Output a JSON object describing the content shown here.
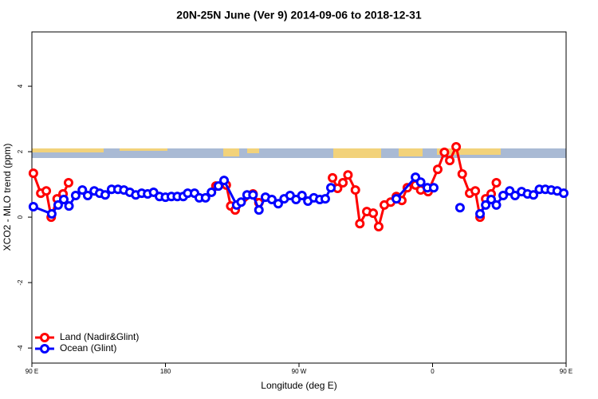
{
  "chart_data": {
    "type": "line",
    "title": "20N-25N June (Ver 9)   2014-09-06 to 2018-12-31",
    "xlabel": "Longitude (deg E)",
    "ylabel": "XCO2 - MLO trend (ppm)",
    "xlim": [
      90,
      450
    ],
    "ylim": [
      -4.46,
      5.66
    ],
    "xticks": [
      {
        "value": 90,
        "label": "90 E"
      },
      {
        "value": 180,
        "label": "180"
      },
      {
        "value": 270,
        "label": "90 W"
      },
      {
        "value": 360,
        "label": "0"
      },
      {
        "value": 450,
        "label": "90 E"
      }
    ],
    "yticks": [
      -4,
      -2,
      0,
      2,
      4
    ],
    "legend": "bottom-left",
    "series": [
      {
        "name": "Land (Nadir&Glint)",
        "color": "#ff0000",
        "x": [
          91,
          96,
          99.7,
          103,
          107,
          111,
          114.7,
          null,
          214,
          221,
          224,
          227,
          239,
          243,
          null,
          292.6,
          296,
          299.6,
          303,
          308,
          311,
          315.7,
          320,
          323.7,
          327.5,
          331.8,
          335.6,
          339.3,
          343,
          348.5,
          352,
          357,
          363.5,
          368,
          371.6,
          375.9,
          380,
          385,
          388.8,
          392,
          395.8,
          399.5,
          403
        ],
        "values": [
          1.34,
          0.73,
          0.8,
          0.0,
          0.56,
          0.71,
          1.05,
          null,
          0.95,
          0.98,
          0.34,
          0.22,
          0.71,
          0.44,
          null,
          1.2,
          0.88,
          1.05,
          1.29,
          0.83,
          -0.2,
          0.17,
          0.12,
          -0.29,
          0.37,
          0.46,
          0.63,
          0.51,
          0.9,
          0.98,
          0.83,
          0.78,
          1.46,
          1.98,
          1.73,
          2.15,
          1.32,
          0.73,
          0.8,
          0.0,
          0.56,
          0.71,
          1.05
        ]
      },
      {
        "name": "Ocean (Glint)",
        "color": "#0000ff",
        "x": [
          91,
          103.4,
          107.7,
          111.5,
          115,
          119.5,
          124,
          127.6,
          132,
          135.7,
          139.4,
          143.7,
          148,
          152,
          156,
          160,
          164,
          168,
          172,
          176,
          180,
          184,
          188,
          192,
          195,
          199.6,
          202.8,
          207,
          211,
          215.7,
          219.5,
          228,
          231,
          235,
          239,
          243,
          247.4,
          251.7,
          256,
          260,
          264,
          268,
          272,
          276,
          280,
          284,
          287.7,
          291.5,
          null,
          335.6,
          348.5,
          352,
          356.5,
          360.8,
          null,
          378.5,
          null,
          392,
          395.8,
          399.5,
          403,
          407.6,
          412,
          415.6,
          420,
          424,
          428,
          432,
          436,
          440,
          444,
          448.4
        ],
        "values": [
          0.32,
          0.1,
          0.37,
          0.54,
          0.34,
          0.66,
          0.83,
          0.66,
          0.8,
          0.73,
          0.68,
          0.85,
          0.85,
          0.83,
          0.76,
          0.68,
          0.73,
          0.71,
          0.76,
          0.63,
          0.61,
          0.63,
          0.63,
          0.63,
          0.73,
          0.73,
          0.59,
          0.59,
          0.76,
          0.95,
          1.12,
          0.37,
          0.46,
          0.68,
          0.68,
          0.22,
          0.61,
          0.54,
          0.41,
          0.56,
          0.66,
          0.54,
          0.66,
          0.49,
          0.59,
          0.54,
          0.56,
          0.9,
          null,
          0.56,
          1.22,
          1.07,
          0.9,
          0.9,
          null,
          0.29,
          null,
          0.1,
          0.37,
          0.54,
          0.37,
          0.66,
          0.8,
          0.66,
          0.78,
          0.71,
          0.68,
          0.85,
          0.85,
          0.83,
          0.8,
          0.73
        ]
      }
    ]
  }
}
